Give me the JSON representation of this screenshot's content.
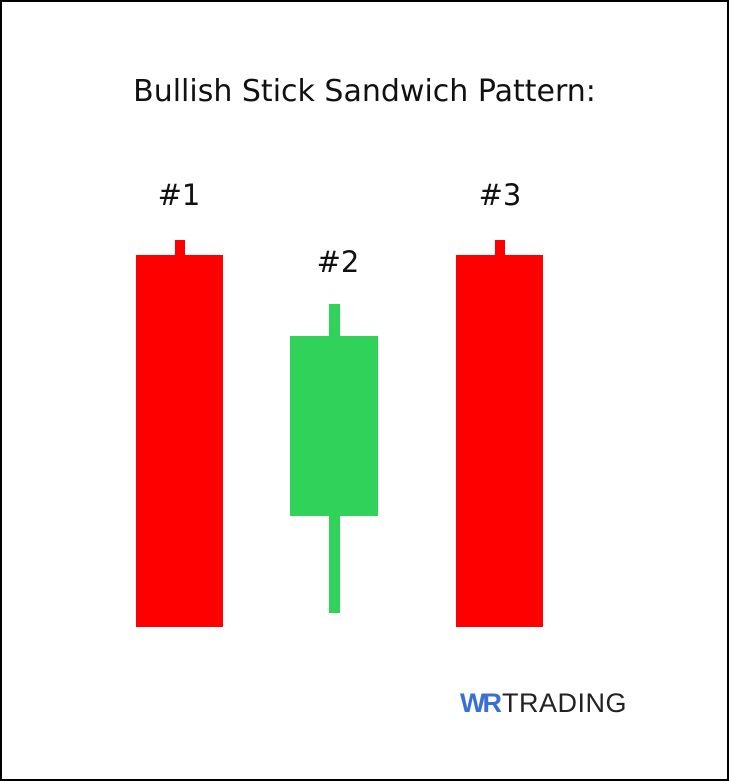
{
  "title": "Bullish Stick Sandwich Pattern:",
  "candles": [
    {
      "label": "#1",
      "direction": "bearish",
      "color": "#ff0000"
    },
    {
      "label": "#2",
      "direction": "bullish",
      "color": "#31d25a"
    },
    {
      "label": "#3",
      "direction": "bearish",
      "color": "#ff0000"
    }
  ],
  "logo": {
    "mark": "WR",
    "text": "TRADING",
    "mark_color": "#3a6fd6"
  }
}
